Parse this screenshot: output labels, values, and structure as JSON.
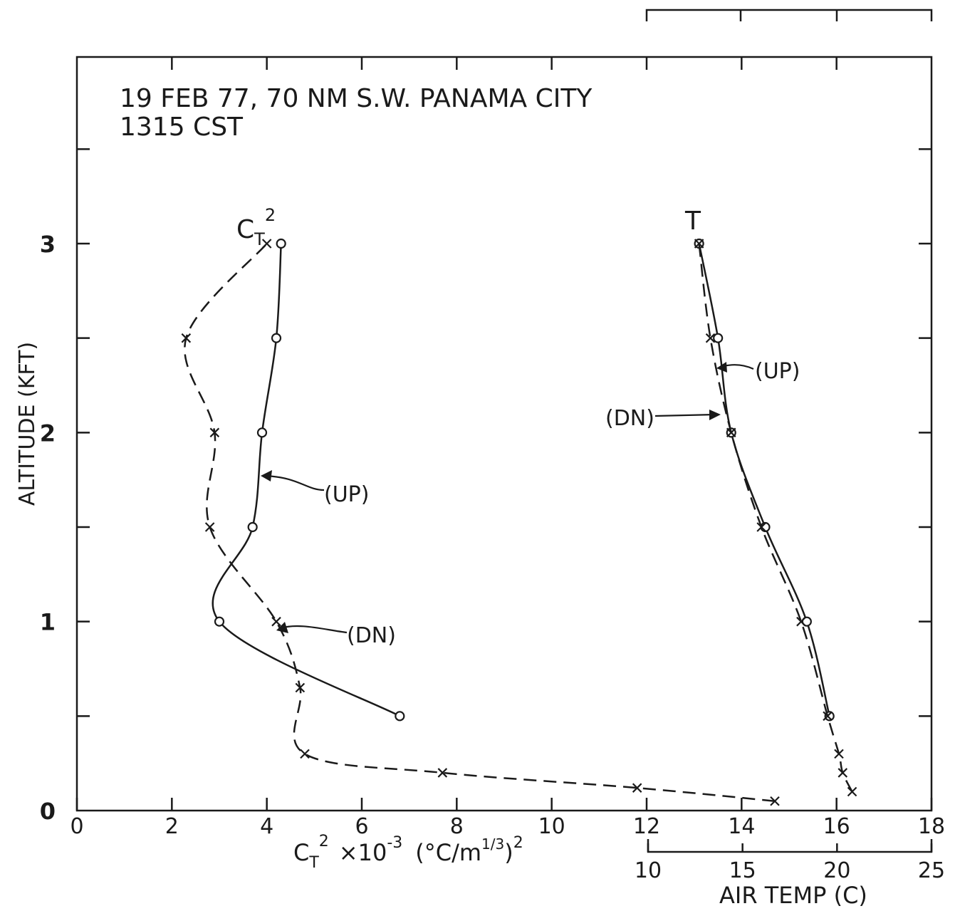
{
  "chart_data": {
    "type": "line",
    "title_line1": "19 FEB 77, 70 NM S.W. PANAMA CITY",
    "title_line2": "1315 CST",
    "ylabel": "ALTITUDE (KFT)",
    "yticks": [
      "0",
      "1",
      "2",
      "3"
    ],
    "ylim": [
      0,
      3.75
    ],
    "x_bottom_main": {
      "label": "C_T^2 ×10^-3 (°C/m^1/3)^2",
      "label_parts": {
        "base": "C",
        "sub": "T",
        "sup": "2",
        "mult": "×10",
        "exp": "-3",
        "unit_a": "(°C/m",
        "unit_exp": "1/3",
        "unit_b": ")",
        "unit_sup": "2"
      },
      "ticks": [
        "0",
        "2",
        "4",
        "6",
        "8",
        "10",
        "12",
        "14",
        "16",
        "18"
      ],
      "lim": [
        0,
        18
      ]
    },
    "x_bottom_temp": {
      "label": "AIR TEMP (C)",
      "ticks": [
        "10",
        "15",
        "20",
        "25"
      ],
      "lim": [
        10,
        25
      ]
    },
    "series": [
      {
        "name": "C_T^2 (UP)",
        "axis": "main",
        "style": "solid",
        "marker": "o",
        "x": [
          6.8,
          3.0,
          3.7,
          3.9,
          4.2,
          4.3
        ],
        "y": [
          0.5,
          1.0,
          1.5,
          2.0,
          2.5,
          3.0
        ]
      },
      {
        "name": "C_T^2 (DN)",
        "axis": "main",
        "style": "dashed",
        "marker": "x",
        "x": [
          14.7,
          11.8,
          7.7,
          4.8,
          4.7,
          4.2,
          2.8,
          2.9,
          2.3,
          4.0
        ],
        "y": [
          0.05,
          0.12,
          0.2,
          0.3,
          0.65,
          1.0,
          1.5,
          2.0,
          2.5,
          3.0
        ]
      },
      {
        "name": "T (UP)",
        "axis": "temp",
        "style": "solid",
        "marker": "o",
        "x": [
          19.6,
          18.4,
          16.2,
          14.4,
          13.7,
          12.7
        ],
        "y": [
          0.5,
          1.0,
          1.5,
          2.0,
          2.5,
          3.0
        ]
      },
      {
        "name": "T (DN)",
        "axis": "temp",
        "style": "dashed",
        "marker": "x",
        "x": [
          20.8,
          20.3,
          20.1,
          19.5,
          18.1,
          16.0,
          14.4,
          13.3,
          12.7
        ],
        "y": [
          0.1,
          0.2,
          0.3,
          0.5,
          1.0,
          1.5,
          2.0,
          2.5,
          3.0
        ]
      }
    ],
    "annotations": {
      "ct2_curve_label": {
        "base": "C",
        "sub": "T",
        "sup": "2"
      },
      "t_curve_label": "T",
      "ct2_up": "(UP)",
      "ct2_dn": "(DN)",
      "t_up": "(UP)",
      "t_dn": "(DN)"
    },
    "grid": false
  }
}
